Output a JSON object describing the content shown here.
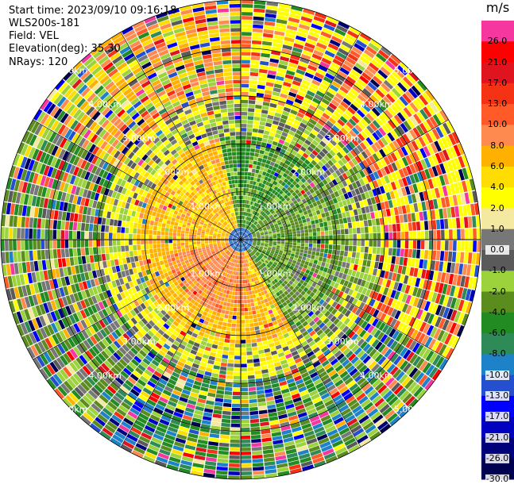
{
  "header": {
    "start_time": "Start time: 2023/09/10 09:16:18",
    "instrument": "WLS200s-181",
    "field": "Field: VEL",
    "elevation": "Elevation(deg): 35.30",
    "nrays": "NRays: 120"
  },
  "chart_data": {
    "type": "heatmap",
    "projection": "polar",
    "variable": "VEL",
    "units": "m/s",
    "n_rays": 120,
    "range_rings_km": [
      1,
      2,
      3,
      4,
      5
    ],
    "range_ring_labels": [
      "1.00km",
      "2.00km",
      "3.00km",
      "4.00km",
      "5.00km"
    ],
    "max_range_km": 5,
    "colorbar": {
      "title": "m/s",
      "boundaries": [
        30.0,
        26.0,
        21.0,
        17.0,
        13.0,
        10.0,
        8.0,
        6.0,
        4.0,
        2.0,
        1.0,
        0.0,
        -1.0,
        -2.0,
        -4.0,
        -6.0,
        -8.0,
        -10.0,
        -13.0,
        -17.0,
        -21.0,
        -26.0,
        -30.0
      ],
      "tick_labels": [
        "26.0",
        "21.0",
        "17.0",
        "13.0",
        "10.0",
        "8.0",
        "6.0",
        "4.0",
        "2.0",
        "1.0",
        "0.0",
        "-1.0",
        "-2.0",
        "-4.0",
        "-6.0",
        "-8.0",
        "-10.0",
        "-13.0",
        "-17.0",
        "-21.0",
        "-26.0",
        "-30.0"
      ],
      "colors": [
        "#f5379f",
        "#ff0000",
        "#e0141e",
        "#f53214",
        "#ff5a28",
        "#ff8a50",
        "#ffb000",
        "#ffdd00",
        "#ffff00",
        "#f5e8a0",
        "#777777",
        "#5a5a5a",
        "#9cd23c",
        "#5a8c1e",
        "#228b22",
        "#2e8b57",
        "#1e82c8",
        "#2450d0",
        "#0000ff",
        "#0000c0",
        "#00007a",
        "#000050"
      ]
    },
    "pattern_summary": {
      "inner_west_south": "positive 1-6 m/s (yellow/orange)",
      "inner_east_north": "negative 2-8 m/s (greens)",
      "outer_ring": "noisy, all classes"
    }
  }
}
